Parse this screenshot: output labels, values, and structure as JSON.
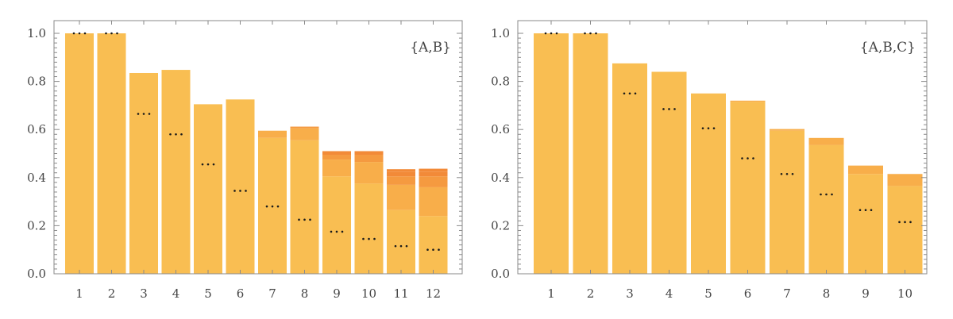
{
  "colors": {
    "base": "#F9BE52",
    "band_mid": "#F8AE4A",
    "band_dark": "#F59A40",
    "band_darkest": "#F28A38",
    "frame": "#8A8A8A",
    "text": "#444444",
    "marker": "#1A1A1A"
  },
  "chart_data": [
    {
      "type": "bar",
      "label": "{A,B}",
      "legend_position": "top-right",
      "grid": false,
      "ylim": [
        0,
        1.0
      ],
      "y_ticks": [
        "0.0",
        "0.2",
        "0.4",
        "0.6",
        "0.8",
        "1.0"
      ],
      "categories": [
        "1",
        "2",
        "3",
        "4",
        "5",
        "6",
        "7",
        "8",
        "9",
        "10",
        "11",
        "12"
      ],
      "values": [
        1.0,
        1.0,
        0.835,
        0.848,
        0.705,
        0.725,
        0.595,
        0.612,
        0.51,
        0.51,
        0.435,
        0.437
      ],
      "stacked_bands": [
        [
          1.0
        ],
        [
          1.0
        ],
        [
          0.835
        ],
        [
          0.848
        ],
        [
          0.705
        ],
        [
          0.725
        ],
        [
          0.565,
          0.595
        ],
        [
          0.555,
          0.605,
          0.612
        ],
        [
          0.405,
          0.475,
          0.495,
          0.51
        ],
        [
          0.375,
          0.465,
          0.495,
          0.51
        ],
        [
          0.265,
          0.37,
          0.405,
          0.425,
          0.435
        ],
        [
          0.24,
          0.36,
          0.405,
          0.425,
          0.437
        ]
      ],
      "marker_values": [
        1.0,
        1.0,
        0.665,
        0.58,
        0.455,
        0.345,
        0.28,
        0.225,
        0.175,
        0.145,
        0.115,
        0.1
      ]
    },
    {
      "type": "bar",
      "label": "{A,B,C}",
      "legend_position": "top-right",
      "grid": false,
      "ylim": [
        0,
        1.0
      ],
      "y_ticks": [
        "0.0",
        "0.2",
        "0.4",
        "0.6",
        "0.8",
        "1.0"
      ],
      "categories": [
        "1",
        "2",
        "3",
        "4",
        "5",
        "6",
        "7",
        "8",
        "9",
        "10"
      ],
      "values": [
        1.0,
        1.0,
        0.875,
        0.84,
        0.75,
        0.72,
        0.602,
        0.565,
        0.45,
        0.415
      ],
      "stacked_bands": [
        [
          1.0
        ],
        [
          1.0
        ],
        [
          0.875
        ],
        [
          0.84
        ],
        [
          0.75
        ],
        [
          0.715,
          0.72
        ],
        [
          0.595,
          0.602
        ],
        [
          0.535,
          0.565
        ],
        [
          0.415,
          0.45
        ],
        [
          0.365,
          0.415
        ]
      ],
      "marker_values": [
        1.0,
        1.0,
        0.75,
        0.685,
        0.605,
        0.48,
        0.415,
        0.33,
        0.265,
        0.215
      ]
    }
  ]
}
